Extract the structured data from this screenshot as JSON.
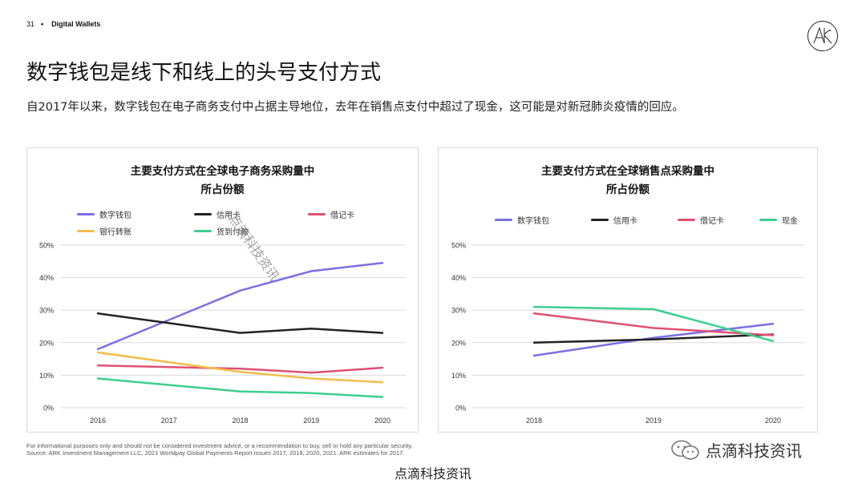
{
  "header": {
    "page_number": "31",
    "separator": "•",
    "section": "Digital Wallets",
    "logo_text": "ARK"
  },
  "title": "数字钱包是线下和线上的头号支付方式",
  "subtitle": "自2017年以来，数字钱包在电子商务支付中占据主导地位，去年在销售点支付中超过了现金，这可能是对新冠肺炎疫情的回应。",
  "colors": {
    "digital_wallet": "#7b6ee6",
    "credit_card": "#222222",
    "debit_card": "#e04f72",
    "bank_transfer": "#f2bd4a",
    "cash_on_delivery": "#3ccf8e",
    "cash": "#3ccf8e",
    "grid": "#d9d9d9"
  },
  "chart_data": [
    {
      "type": "line",
      "title": "主要支付方式在全球电子商务采购量中所占份额",
      "title_lines": [
        "主要支付方式在全球电子商务采购量中",
        "所占份额"
      ],
      "x": [
        "2016",
        "2017",
        "2018",
        "2019",
        "2020"
      ],
      "ylim": [
        0,
        50
      ],
      "yticks": [
        "0%",
        "10%",
        "20%",
        "30%",
        "40%",
        "50%"
      ],
      "grid": true,
      "legend_position": "top",
      "series": [
        {
          "name": "数字钱包",
          "color_key": "digital_wallet",
          "values": [
            18,
            27,
            36,
            42,
            44.5
          ]
        },
        {
          "name": "信用卡",
          "color_key": "credit_card",
          "values": [
            29,
            26,
            23,
            24.3,
            23
          ]
        },
        {
          "name": "借记卡",
          "color_key": "debit_card",
          "values": [
            13,
            12.5,
            12,
            10.8,
            12.3
          ]
        },
        {
          "name": "银行转账",
          "color_key": "bank_transfer",
          "values": [
            17,
            14,
            11,
            9,
            7.8
          ]
        },
        {
          "name": "货到付款",
          "color_key": "cash_on_delivery",
          "values": [
            9,
            7,
            5,
            4.5,
            3.3
          ]
        }
      ]
    },
    {
      "type": "line",
      "title": "主要支付方式在全球销售点采购量中所占份额",
      "title_lines": [
        "主要支付方式在全球销售点采购量中",
        "所占份额"
      ],
      "x": [
        "2018",
        "2019",
        "2020"
      ],
      "ylim": [
        0,
        50
      ],
      "yticks": [
        "0%",
        "10%",
        "20%",
        "30%",
        "40%",
        "50%"
      ],
      "grid": true,
      "legend_position": "top",
      "series": [
        {
          "name": "数字钱包",
          "color_key": "digital_wallet",
          "values": [
            16,
            21.5,
            25.8
          ]
        },
        {
          "name": "信用卡",
          "color_key": "credit_card",
          "values": [
            20,
            21,
            22.5
          ]
        },
        {
          "name": "借记卡",
          "color_key": "debit_card",
          "values": [
            29,
            24.5,
            22.3
          ]
        },
        {
          "name": "现金",
          "color_key": "cash",
          "values": [
            31,
            30.3,
            20.5
          ]
        }
      ]
    }
  ],
  "footnote": {
    "line1": "For informational purposes only and should not be considered investment advice, or a recommendation to buy, sell or hold any particular security.",
    "line2": "Source: ARK Investment Management LLC, 2021 Worldpay Global Payments Report issues 2017, 2018, 2020, 2021. ARK estimates for 2017."
  },
  "watermark": {
    "bottom_text": "点滴科技资讯",
    "brand_text": "点滴科技资讯",
    "diagonal_text": "点滴科技资讯"
  }
}
